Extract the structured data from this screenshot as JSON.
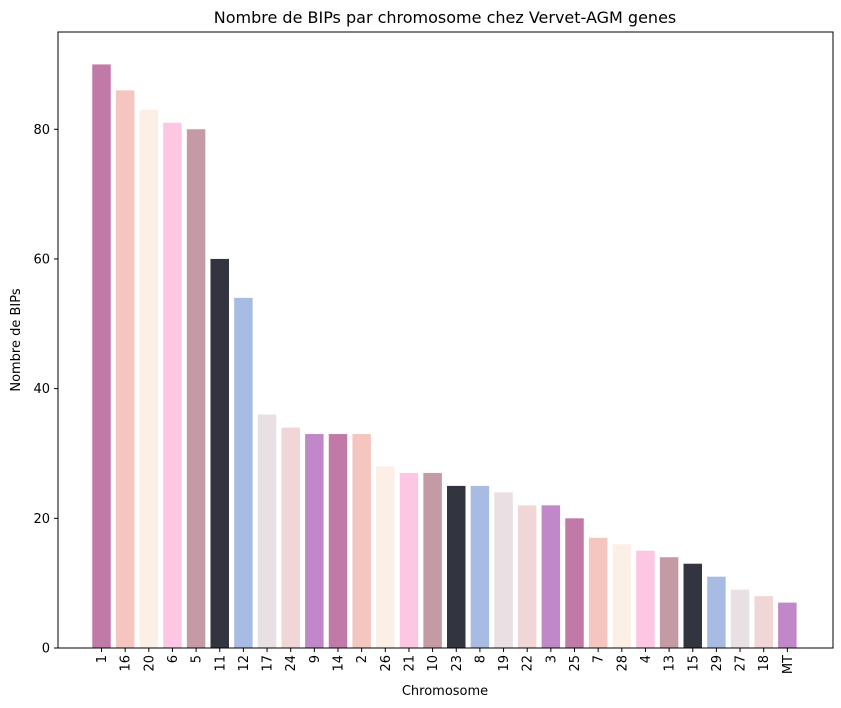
{
  "chart_data": {
    "type": "bar",
    "title": "Nombre de BIPs par chromosome chez Vervet-AGM genes",
    "xlabel": "Chromosome",
    "ylabel": "Nombre de BIPs",
    "ylim": [
      0,
      95
    ],
    "yticks": [
      0,
      20,
      40,
      60,
      80
    ],
    "grid": false,
    "categories": [
      "1",
      "16",
      "20",
      "6",
      "5",
      "11",
      "12",
      "17",
      "24",
      "9",
      "14",
      "2",
      "26",
      "21",
      "10",
      "23",
      "8",
      "19",
      "22",
      "3",
      "25",
      "7",
      "28",
      "4",
      "13",
      "15",
      "29",
      "27",
      "18",
      "MT"
    ],
    "values": [
      90,
      86,
      83,
      81,
      80,
      60,
      54,
      36,
      34,
      33,
      33,
      33,
      28,
      27,
      27,
      25,
      25,
      24,
      22,
      22,
      20,
      17,
      16,
      15,
      14,
      13,
      11,
      9,
      8,
      7
    ],
    "colors": [
      "#c17aa8",
      "#f5c6c0",
      "#fcefe6",
      "#fdc6e2",
      "#c49aa4",
      "#32353f",
      "#a8bce3",
      "#e8e0e3",
      "#f0d6d6",
      "#c088c8"
    ]
  }
}
